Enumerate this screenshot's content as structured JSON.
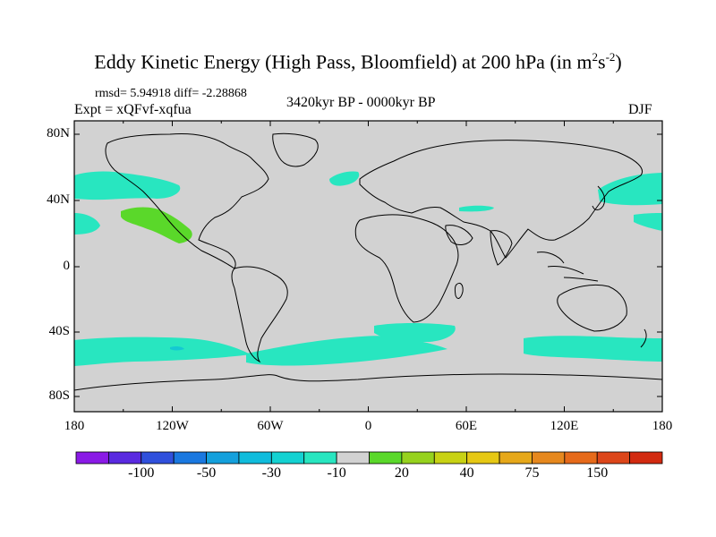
{
  "title_main": "Eddy Kinetic Energy (High Pass, Bloomfield) at 200 hPa (in m",
  "title_sup1": "2",
  "title_mid": "s",
  "title_sup2": "-2",
  "title_end": ")",
  "stats": "rmsd= 5.94918 diff= -2.28868",
  "expt": "Expt = xQFvf-xqfua",
  "period": "3420kyr BP - 0000kyr BP",
  "season": "DJF",
  "lat_labels": [
    "80N",
    "40N",
    "0",
    "40S",
    "80S"
  ],
  "lon_labels": [
    "180",
    "120W",
    "60W",
    "0",
    "60E",
    "120E",
    "180"
  ],
  "colorbar": {
    "colors": [
      "#8a1ae6",
      "#5a2ae0",
      "#3050dc",
      "#1a78e0",
      "#14a0dc",
      "#10bcdc",
      "#14d2d2",
      "#28e6c0",
      "#d2d2d2",
      "#5ad82a",
      "#96d21e",
      "#c8d214",
      "#e6c814",
      "#e6a81a",
      "#e6881e",
      "#e66a1a",
      "#dc461a",
      "#d22a10"
    ],
    "labels": [
      "-100",
      "-50",
      "-30",
      "-10",
      "20",
      "40",
      "75",
      "150"
    ]
  },
  "fill_colors": {
    "ocean_land": "#d2d2d2",
    "neg": "#28e6c0",
    "neg_deep": "#14c8d2",
    "pos": "#5ad82a"
  }
}
